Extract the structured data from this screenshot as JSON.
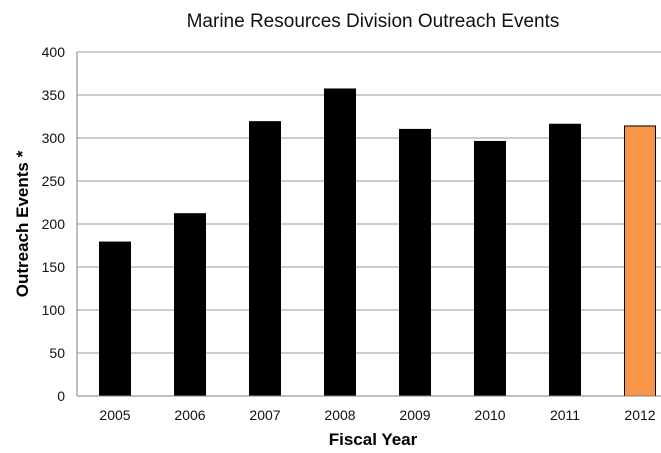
{
  "chart_data": {
    "type": "bar",
    "title": "Marine Resources Division Outreach Events",
    "xlabel": "Fiscal Year",
    "ylabel": "Outreach Events *",
    "categories": [
      "2005",
      "2006",
      "2007",
      "2008",
      "2009",
      "2010",
      "2011",
      "2012"
    ],
    "values": [
      179,
      212,
      319,
      357,
      310,
      296,
      316,
      314
    ],
    "bar_colors": [
      "#000000",
      "#000000",
      "#000000",
      "#000000",
      "#000000",
      "#000000",
      "#000000",
      "#f79646"
    ],
    "ylim": [
      0,
      400
    ],
    "yticks": [
      "0",
      "50",
      "100",
      "150",
      "200",
      "250",
      "300",
      "350",
      "400"
    ],
    "grid": true,
    "legend": "none"
  }
}
